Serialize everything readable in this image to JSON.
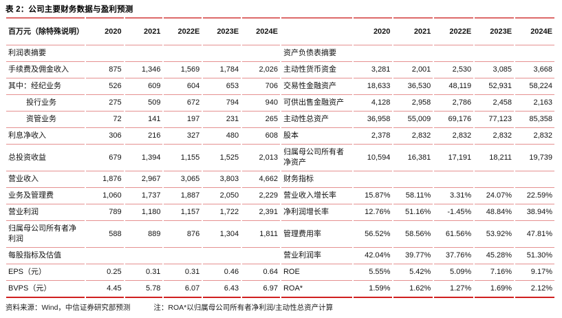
{
  "title": "表 2：公司主要财务数据与盈利预测",
  "colors": {
    "rule": "#e59090",
    "rule_strong": "#dd6a6a",
    "rule_bottom": "#cf1f1f"
  },
  "table": {
    "unit_label": "百万元（除特殊说明）",
    "years": [
      "2020",
      "2021",
      "2022E",
      "2023E",
      "2024E"
    ],
    "rows": [
      {
        "left_label": "利润表摘要",
        "left_values": [
          "",
          "",
          "",
          "",
          ""
        ],
        "right_label": "资产负债表摘要",
        "right_values": [
          "",
          "",
          "",
          "",
          ""
        ]
      },
      {
        "left_label": "手续费及佣金收入",
        "left_values": [
          "875",
          "1,346",
          "1,569",
          "1,784",
          "2,026"
        ],
        "right_label": "主动性货币资金",
        "right_values": [
          "3,281",
          "2,001",
          "2,530",
          "3,085",
          "3,668"
        ]
      },
      {
        "left_label": "其中：经纪业务",
        "left_values": [
          "526",
          "609",
          "604",
          "653",
          "706"
        ],
        "right_label": "交易性金融资产",
        "right_values": [
          "18,633",
          "36,530",
          "48,119",
          "52,931",
          "58,224"
        ]
      },
      {
        "left_label": "投行业务",
        "left_indent": true,
        "left_values": [
          "275",
          "509",
          "672",
          "794",
          "940"
        ],
        "right_label": "可供出售金融资产",
        "right_values": [
          "4,128",
          "2,958",
          "2,786",
          "2,458",
          "2,163"
        ]
      },
      {
        "left_label": "资管业务",
        "left_indent": true,
        "left_values": [
          "72",
          "141",
          "197",
          "231",
          "265"
        ],
        "right_label": "主动性总资产",
        "right_values": [
          "36,958",
          "55,009",
          "69,176",
          "77,123",
          "85,358"
        ]
      },
      {
        "left_label": "利息净收入",
        "left_values": [
          "306",
          "216",
          "327",
          "480",
          "608"
        ],
        "right_label": "股本",
        "right_values": [
          "2,378",
          "2,832",
          "2,832",
          "2,832",
          "2,832"
        ]
      },
      {
        "left_label": "总投资收益",
        "left_values": [
          "679",
          "1,394",
          "1,155",
          "1,525",
          "2,013"
        ],
        "right_label": "归属母公司所有者净资产",
        "right_values": [
          "10,594",
          "16,381",
          "17,191",
          "18,211",
          "19,739"
        ]
      },
      {
        "left_label": "营业收入",
        "left_values": [
          "1,876",
          "2,967",
          "3,065",
          "3,803",
          "4,662"
        ],
        "right_label": "财务指标",
        "right_values": [
          "",
          "",
          "",
          "",
          ""
        ]
      },
      {
        "left_label": "业务及管理费",
        "left_values": [
          "1,060",
          "1,737",
          "1,887",
          "2,050",
          "2,229"
        ],
        "right_label": "营业收入增长率",
        "right_values": [
          "15.87%",
          "58.11%",
          "3.31%",
          "24.07%",
          "22.59%"
        ]
      },
      {
        "left_label": "营业利润",
        "left_values": [
          "789",
          "1,180",
          "1,157",
          "1,722",
          "2,391"
        ],
        "right_label": "净利润增长率",
        "right_values": [
          "12.76%",
          "51.16%",
          "-1.45%",
          "48.84%",
          "38.94%"
        ]
      },
      {
        "left_label": "归属母公司所有者净利润",
        "left_values": [
          "588",
          "889",
          "876",
          "1,304",
          "1,811"
        ],
        "right_label": "管理费用率",
        "right_values": [
          "56.52%",
          "58.56%",
          "61.56%",
          "53.92%",
          "47.81%"
        ]
      },
      {
        "left_label": "每股指标及估值",
        "left_values": [
          "",
          "",
          "",
          "",
          ""
        ],
        "right_label": "营业利润率",
        "right_values": [
          "42.04%",
          "39.77%",
          "37.76%",
          "45.28%",
          "51.30%"
        ]
      },
      {
        "left_label": "EPS（元）",
        "left_values": [
          "0.25",
          "0.31",
          "0.31",
          "0.46",
          "0.64"
        ],
        "right_label": "ROE",
        "right_values": [
          "5.55%",
          "5.42%",
          "5.09%",
          "7.16%",
          "9.17%"
        ]
      },
      {
        "left_label": "BVPS（元）",
        "left_values": [
          "4.45",
          "5.78",
          "6.07",
          "6.43",
          "6.97"
        ],
        "right_label": "ROA*",
        "right_values": [
          "1.59%",
          "1.62%",
          "1.27%",
          "1.69%",
          "2.12%"
        ]
      }
    ]
  },
  "footer": {
    "source": "资料来源：Wind，中信证券研究部预测",
    "note": "注：ROA*以归属母公司所有者净利润/主动性总资产计算"
  }
}
